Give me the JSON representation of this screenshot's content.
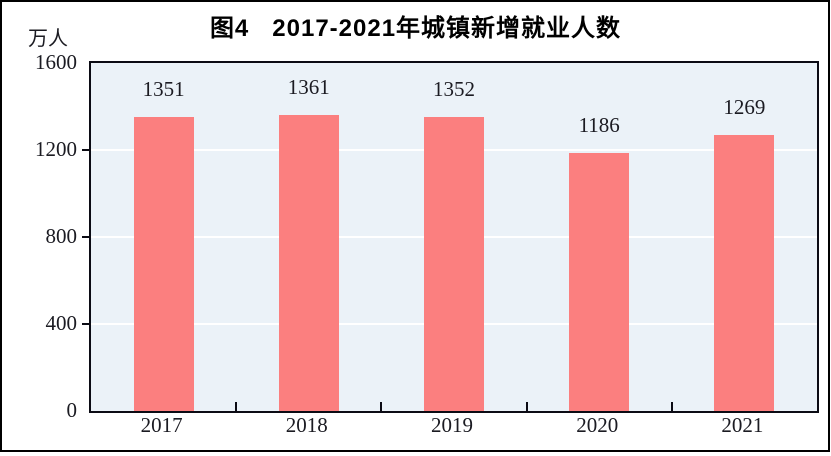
{
  "figure": {
    "title": "图4   2017-2021年城镇新增就业人数",
    "unit_label": "万人"
  },
  "chart_data": {
    "type": "bar",
    "title": "图4   2017-2021年城镇新增就业人数",
    "categories": [
      "2017",
      "2018",
      "2019",
      "2020",
      "2021"
    ],
    "values": [
      1351,
      1361,
      1352,
      1186,
      1269
    ],
    "value_labels": [
      "1351",
      "1361",
      "1352",
      "1186",
      "1269"
    ],
    "xlabel": "",
    "ylabel": "万人",
    "ylim": [
      0,
      1600
    ],
    "yticks": [
      0,
      400,
      800,
      1200,
      1600
    ],
    "grid": true,
    "legend": "none",
    "bar_color": "#FB7F7F",
    "plot_background": "#EBF2F8",
    "gridline_color": "#FFFFFF",
    "axis_color": "#0B0B14",
    "text_color": "#1B1B22"
  }
}
